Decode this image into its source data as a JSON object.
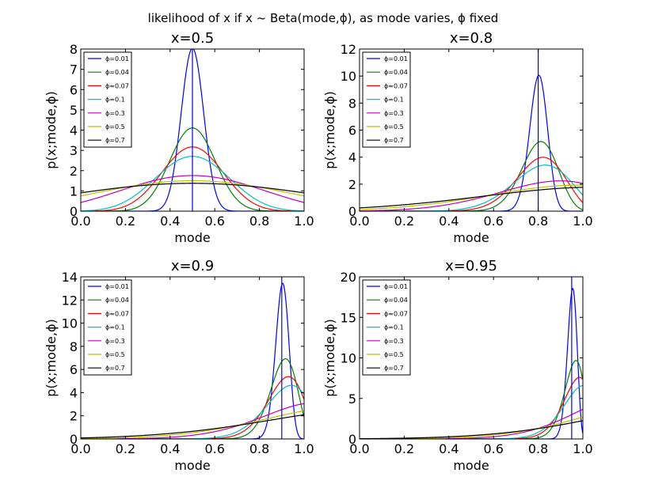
{
  "figure": {
    "suptitle": "likelihood of x if x ~ Beta(mode,ϕ), as mode varies, ϕ fixed"
  },
  "chart_data": [
    {
      "type": "line",
      "title": "x=0.5",
      "xlabel": "mode",
      "ylabel": "p(x;mode,ϕ)",
      "x_value": 0.5,
      "xlim": [
        0,
        1
      ],
      "ylim": [
        0,
        8
      ],
      "xticks": [
        "0.0",
        "0.2",
        "0.4",
        "0.6",
        "0.8",
        "1.0"
      ],
      "yticks": [
        "0",
        "1",
        "2",
        "3",
        "4",
        "5",
        "6",
        "7",
        "8"
      ],
      "vertical_line_at": 0.5,
      "legend": "top-left",
      "series": [
        {
          "name": "ϕ=0.01",
          "color": "#0000ff",
          "phi": 0.01
        },
        {
          "name": "ϕ=0.04",
          "color": "#008000",
          "phi": 0.04
        },
        {
          "name": "ϕ=0.07",
          "color": "#ff0000",
          "phi": 0.07
        },
        {
          "name": "ϕ=0.1",
          "color": "#00bfbf",
          "phi": 0.1
        },
        {
          "name": "ϕ=0.3",
          "color": "#bf00bf",
          "phi": 0.3
        },
        {
          "name": "ϕ=0.5",
          "color": "#bfbf00",
          "phi": 0.5
        },
        {
          "name": "ϕ=0.7",
          "color": "#000000",
          "phi": 0.7
        }
      ]
    },
    {
      "type": "line",
      "title": "x=0.8",
      "xlabel": "mode",
      "ylabel": "p(x;mode,ϕ)",
      "x_value": 0.8,
      "xlim": [
        0,
        1
      ],
      "ylim": [
        0,
        12
      ],
      "xticks": [
        "0.0",
        "0.2",
        "0.4",
        "0.6",
        "0.8",
        "1.0"
      ],
      "yticks": [
        "0",
        "2",
        "4",
        "6",
        "8",
        "10",
        "12"
      ],
      "vertical_line_at": 0.8,
      "legend": "top-left",
      "series": [
        {
          "name": "ϕ=0.01",
          "color": "#0000ff",
          "phi": 0.01
        },
        {
          "name": "ϕ=0.04",
          "color": "#008000",
          "phi": 0.04
        },
        {
          "name": "ϕ=0.07",
          "color": "#ff0000",
          "phi": 0.07
        },
        {
          "name": "ϕ=0.1",
          "color": "#00bfbf",
          "phi": 0.1
        },
        {
          "name": "ϕ=0.3",
          "color": "#bf00bf",
          "phi": 0.3
        },
        {
          "name": "ϕ=0.5",
          "color": "#bfbf00",
          "phi": 0.5
        },
        {
          "name": "ϕ=0.7",
          "color": "#000000",
          "phi": 0.7
        }
      ]
    },
    {
      "type": "line",
      "title": "x=0.9",
      "xlabel": "mode",
      "ylabel": "p(x;mode,ϕ)",
      "x_value": 0.9,
      "xlim": [
        0,
        1
      ],
      "ylim": [
        0,
        14
      ],
      "xticks": [
        "0.0",
        "0.2",
        "0.4",
        "0.6",
        "0.8",
        "1.0"
      ],
      "yticks": [
        "0",
        "2",
        "4",
        "6",
        "8",
        "10",
        "12",
        "14"
      ],
      "vertical_line_at": 0.9,
      "legend": "top-left",
      "series": [
        {
          "name": "ϕ=0.01",
          "color": "#0000ff",
          "phi": 0.01
        },
        {
          "name": "ϕ=0.04",
          "color": "#008000",
          "phi": 0.04
        },
        {
          "name": "ϕ=0.07",
          "color": "#ff0000",
          "phi": 0.07
        },
        {
          "name": "ϕ=0.1",
          "color": "#00bfbf",
          "phi": 0.1
        },
        {
          "name": "ϕ=0.3",
          "color": "#bf00bf",
          "phi": 0.3
        },
        {
          "name": "ϕ=0.5",
          "color": "#bfbf00",
          "phi": 0.5
        },
        {
          "name": "ϕ=0.7",
          "color": "#000000",
          "phi": 0.7
        }
      ]
    },
    {
      "type": "line",
      "title": "x=0.95",
      "xlabel": "mode",
      "ylabel": "p(x;mode,ϕ)",
      "x_value": 0.95,
      "xlim": [
        0,
        1
      ],
      "ylim": [
        0,
        20
      ],
      "xticks": [
        "0.0",
        "0.2",
        "0.4",
        "0.6",
        "0.8",
        "1.0"
      ],
      "yticks": [
        "0",
        "5",
        "10",
        "15",
        "20"
      ],
      "vertical_line_at": 0.95,
      "legend": "top-left",
      "series": [
        {
          "name": "ϕ=0.01",
          "color": "#0000ff",
          "phi": 0.01
        },
        {
          "name": "ϕ=0.04",
          "color": "#008000",
          "phi": 0.04
        },
        {
          "name": "ϕ=0.07",
          "color": "#ff0000",
          "phi": 0.07
        },
        {
          "name": "ϕ=0.1",
          "color": "#00bfbf",
          "phi": 0.1
        },
        {
          "name": "ϕ=0.3",
          "color": "#bf00bf",
          "phi": 0.3
        },
        {
          "name": "ϕ=0.5",
          "color": "#bfbf00",
          "phi": 0.5
        },
        {
          "name": "ϕ=0.7",
          "color": "#000000",
          "phi": 0.7
        }
      ]
    }
  ]
}
